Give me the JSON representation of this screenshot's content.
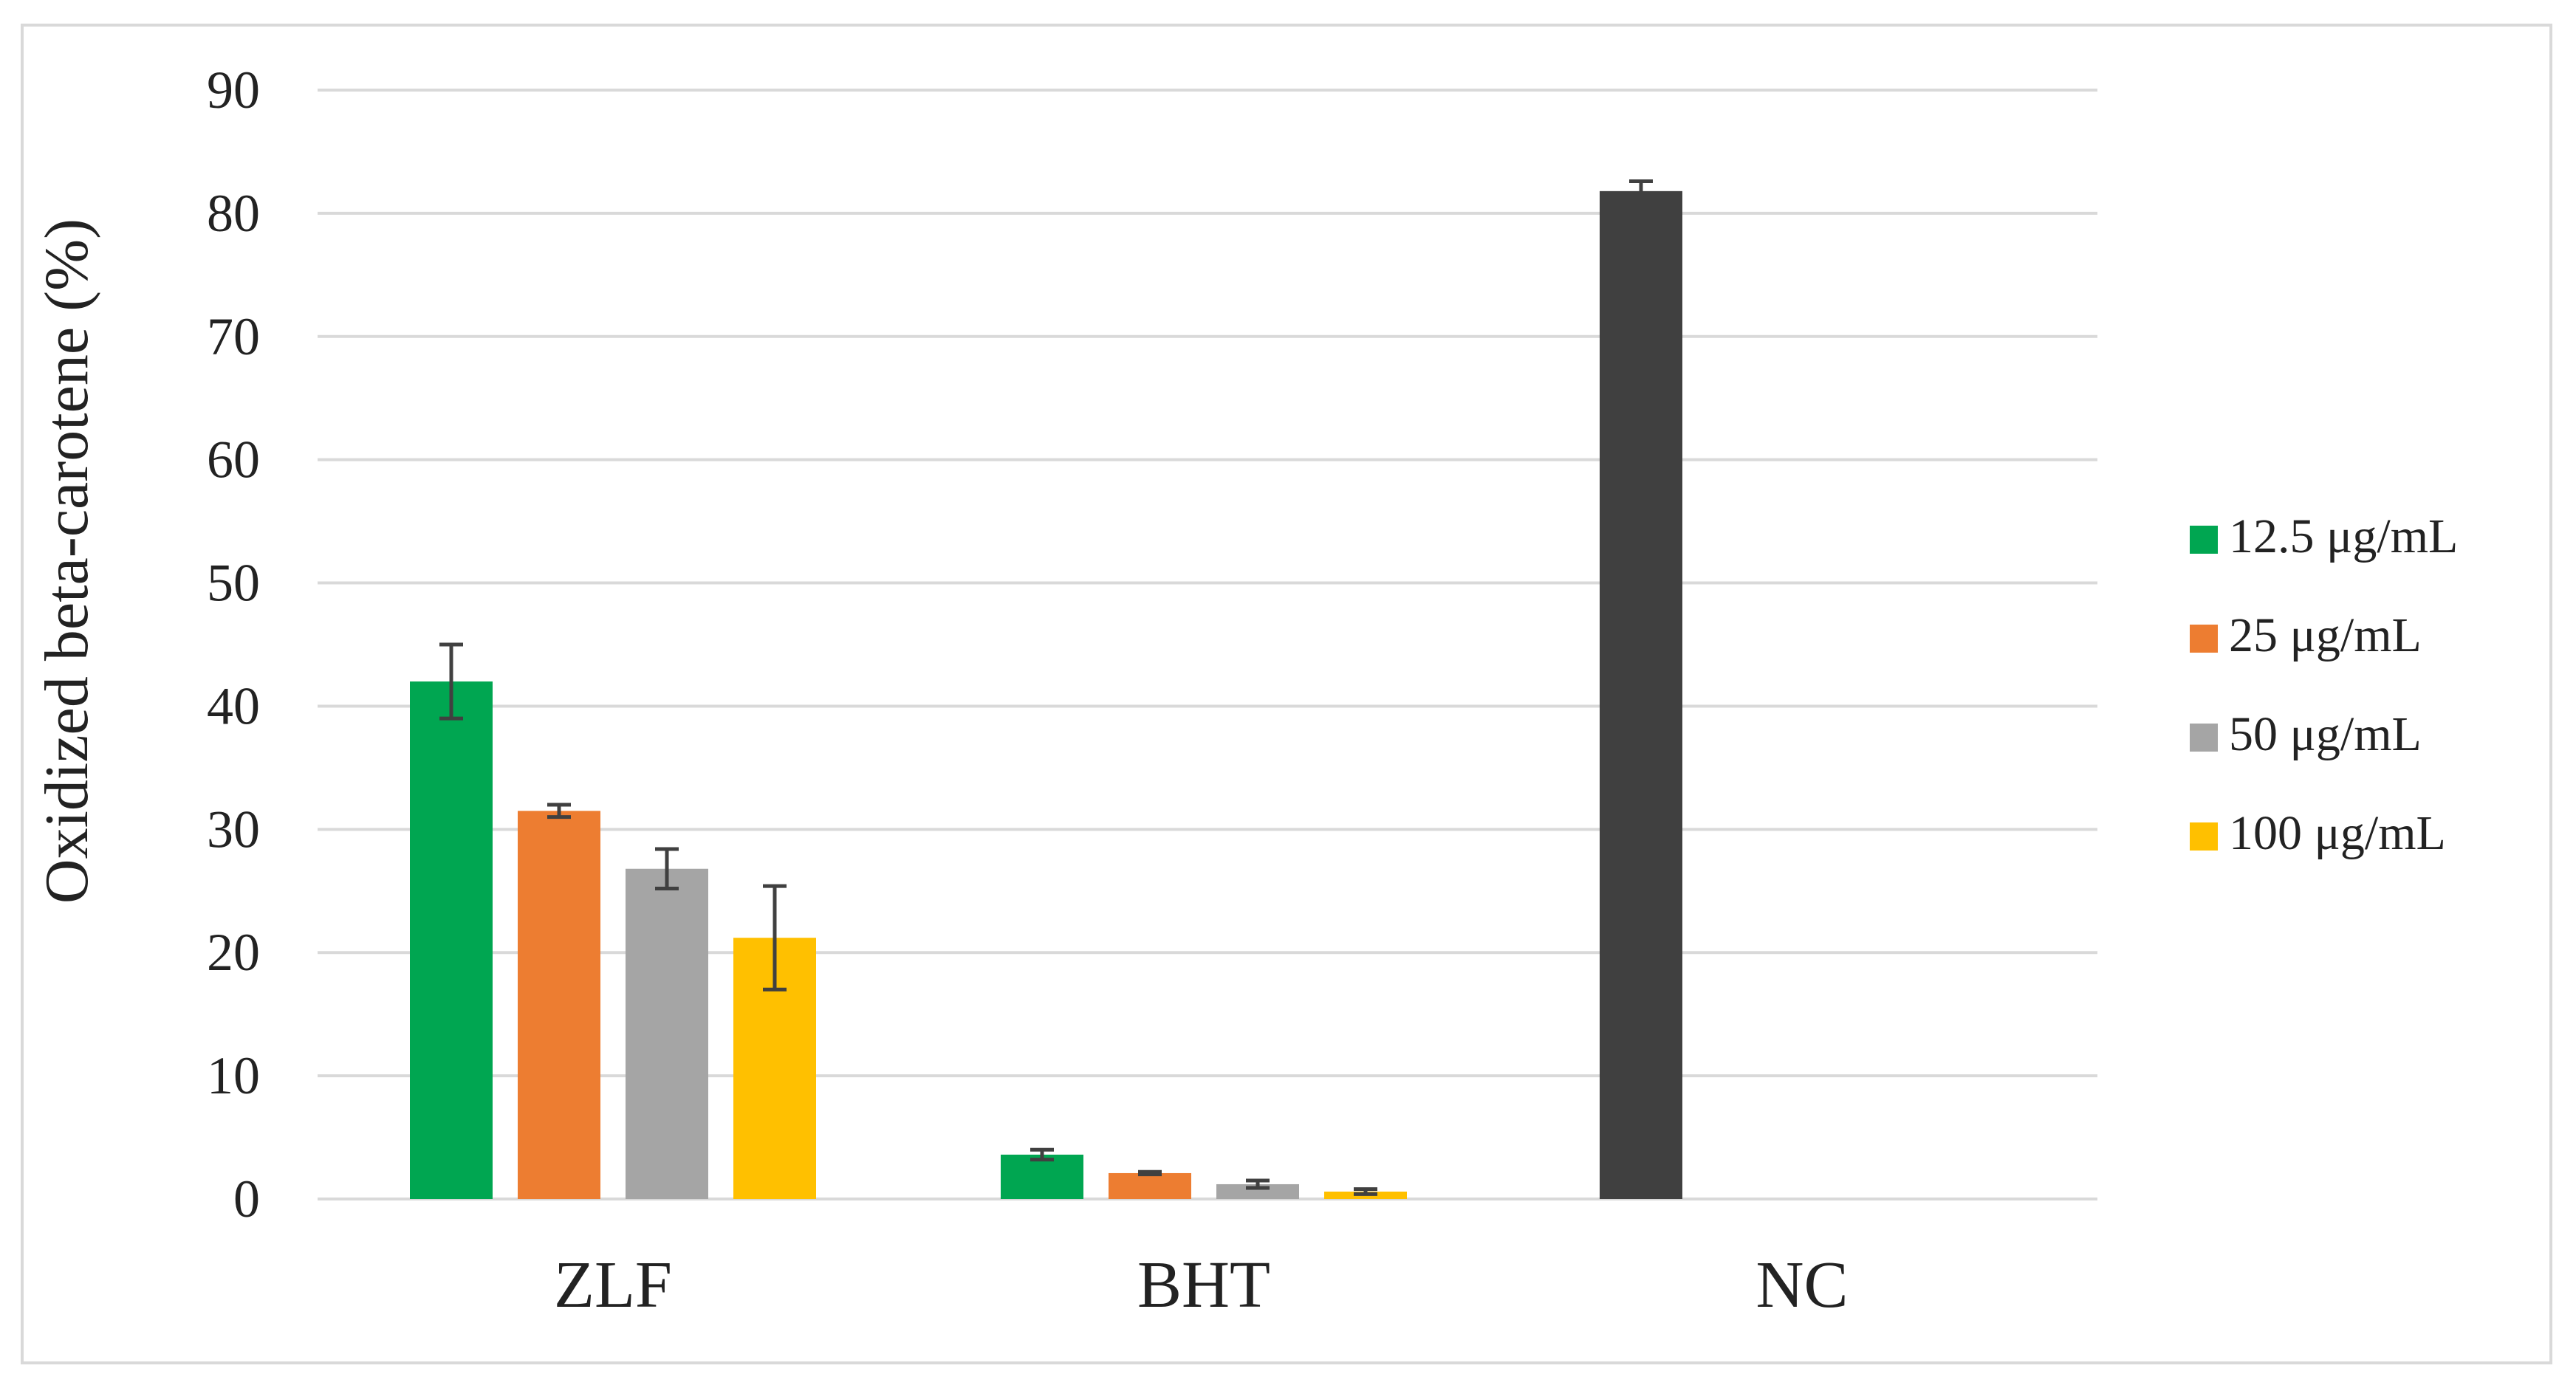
{
  "chart_data": {
    "type": "bar",
    "title": "",
    "xlabel": "",
    "ylabel": "Oxidized beta-carotene (%)",
    "ylim": [
      0,
      90
    ],
    "yticks": [
      0,
      10,
      20,
      30,
      40,
      50,
      60,
      70,
      80,
      90
    ],
    "grid": true,
    "legend_position": "right",
    "categories": [
      "ZLF",
      "BHT",
      "NC"
    ],
    "series": [
      {
        "name": "12.5 μg/mL",
        "color": "#00a651",
        "values": [
          42,
          3.6,
          null
        ],
        "errors": [
          3,
          0.4,
          null
        ]
      },
      {
        "name": "25 μg/mL",
        "color": "#ed7d31",
        "values": [
          31.5,
          2.1,
          null
        ],
        "errors": [
          0.5,
          0.1,
          null
        ]
      },
      {
        "name": "50 μg/mL",
        "color": "#a5a5a5",
        "values": [
          26.8,
          1.2,
          null
        ],
        "errors": [
          1.6,
          0.3,
          null
        ]
      },
      {
        "name": "100 μg/mL",
        "color": "#ffc000",
        "values": [
          21.2,
          0.6,
          null
        ],
        "errors": [
          4.2,
          0.2,
          null
        ]
      }
    ],
    "extra_bars": [
      {
        "category": "NC",
        "value": 81.8,
        "error": 0.8,
        "color": "#404040"
      }
    ]
  }
}
